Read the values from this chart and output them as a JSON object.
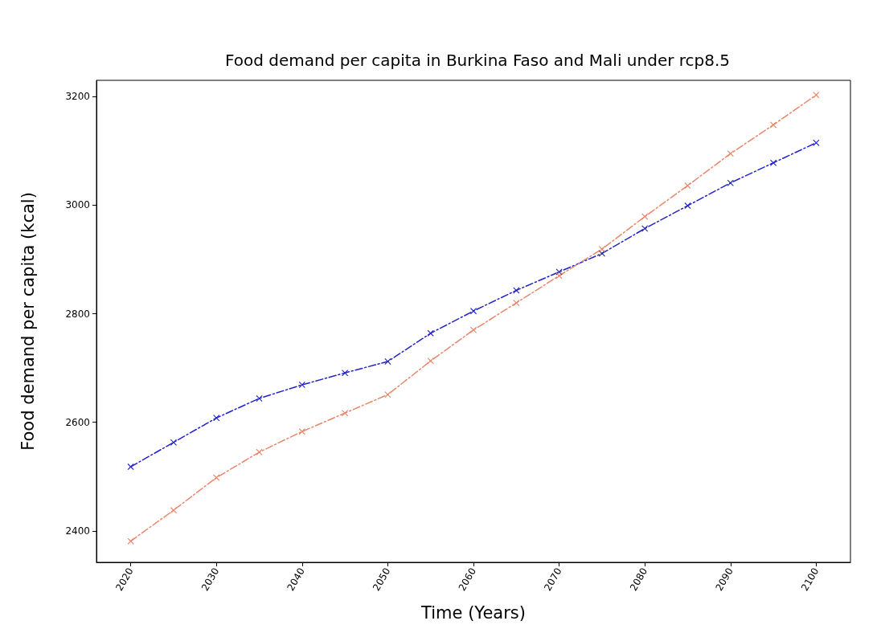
{
  "chart_data": {
    "type": "line",
    "title": "Food demand per capita in Burkina Faso and Mali under rcp8.5",
    "xlabel": "Time (Years)",
    "ylabel": "Food demand per capita (kcal)",
    "x": [
      2020,
      2025,
      2030,
      2035,
      2040,
      2045,
      2050,
      2055,
      2060,
      2065,
      2070,
      2075,
      2080,
      2085,
      2090,
      2095,
      2100
    ],
    "series": [
      {
        "color": "#2222cc",
        "values": [
          2518,
          2563,
          2608,
          2644,
          2669,
          2691,
          2712,
          2764,
          2805,
          2843,
          2877,
          2911,
          2957,
          2999,
          3041,
          3078,
          3115
        ]
      },
      {
        "color": "#e8866a",
        "values": [
          2381,
          2438,
          2498,
          2545,
          2583,
          2617,
          2651,
          2713,
          2770,
          2820,
          2870,
          2919,
          2979,
          3036,
          3095,
          3148,
          3203
        ]
      }
    ],
    "xlim": [
      2016,
      2104
    ],
    "xticks": [
      2020,
      2030,
      2040,
      2050,
      2060,
      2070,
      2080,
      2090,
      2100
    ],
    "ylim": [
      2342,
      3230
    ],
    "yticks": [
      2400,
      2600,
      2800,
      3000,
      3200
    ],
    "grid": false,
    "marker": "cross",
    "line_style": "dashdot"
  }
}
